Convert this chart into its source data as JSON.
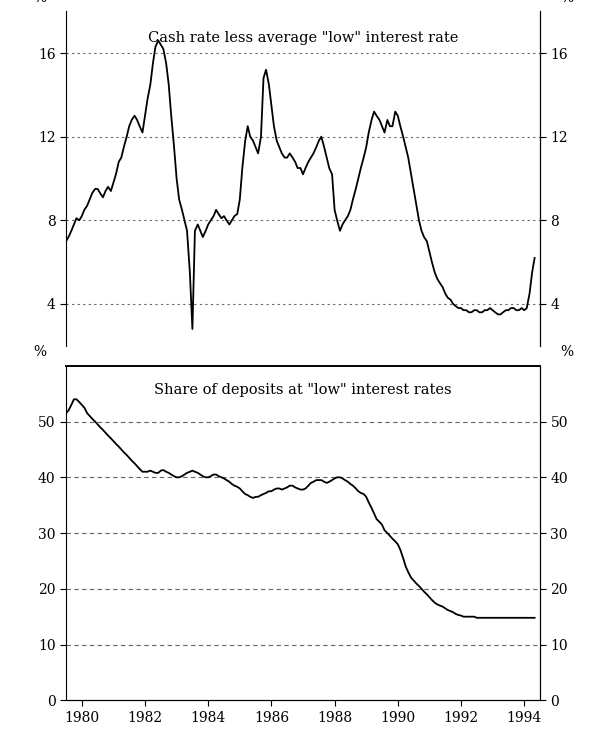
{
  "title1": "Cash rate less average \"low\" interest rate",
  "title2": "Share of deposits at \"low\" interest rates",
  "ylabel": "%",
  "xlabel_ticks": [
    1980,
    1982,
    1984,
    1986,
    1988,
    1990,
    1992,
    1994
  ],
  "panel1_ylim": [
    2,
    18
  ],
  "panel1_yticks": [
    4,
    8,
    12,
    16
  ],
  "panel2_ylim": [
    0,
    60
  ],
  "panel2_yticks": [
    0,
    10,
    20,
    30,
    40,
    50
  ],
  "line_color": "#000000",
  "background_color": "#ffffff",
  "grid_color_dotted": "#666666",
  "panel1_data_x": [
    1979.5,
    1979.58,
    1979.67,
    1979.75,
    1979.83,
    1979.92,
    1980.0,
    1980.08,
    1980.17,
    1980.25,
    1980.33,
    1980.42,
    1980.5,
    1980.58,
    1980.67,
    1980.75,
    1980.83,
    1980.92,
    1981.0,
    1981.08,
    1981.17,
    1981.25,
    1981.33,
    1981.42,
    1981.5,
    1981.58,
    1981.67,
    1981.75,
    1981.83,
    1981.92,
    1982.0,
    1982.08,
    1982.17,
    1982.25,
    1982.33,
    1982.42,
    1982.5,
    1982.58,
    1982.67,
    1982.75,
    1982.83,
    1982.92,
    1983.0,
    1983.08,
    1983.17,
    1983.25,
    1983.33,
    1983.42,
    1983.5,
    1983.58,
    1983.67,
    1983.75,
    1983.83,
    1983.92,
    1984.0,
    1984.08,
    1984.17,
    1984.25,
    1984.33,
    1984.42,
    1984.5,
    1984.58,
    1984.67,
    1984.75,
    1984.83,
    1984.92,
    1985.0,
    1985.08,
    1985.17,
    1985.25,
    1985.33,
    1985.42,
    1985.5,
    1985.58,
    1985.67,
    1985.75,
    1985.83,
    1985.92,
    1986.0,
    1986.08,
    1986.17,
    1986.25,
    1986.33,
    1986.42,
    1986.5,
    1986.58,
    1986.67,
    1986.75,
    1986.83,
    1986.92,
    1987.0,
    1987.08,
    1987.17,
    1987.25,
    1987.33,
    1987.42,
    1987.5,
    1987.58,
    1987.67,
    1987.75,
    1987.83,
    1987.92,
    1988.0,
    1988.08,
    1988.17,
    1988.25,
    1988.33,
    1988.42,
    1988.5,
    1988.58,
    1988.67,
    1988.75,
    1988.83,
    1988.92,
    1989.0,
    1989.08,
    1989.17,
    1989.25,
    1989.33,
    1989.42,
    1989.5,
    1989.58,
    1989.67,
    1989.75,
    1989.83,
    1989.92,
    1990.0,
    1990.08,
    1990.17,
    1990.25,
    1990.33,
    1990.42,
    1990.5,
    1990.58,
    1990.67,
    1990.75,
    1990.83,
    1990.92,
    1991.0,
    1991.08,
    1991.17,
    1991.25,
    1991.33,
    1991.42,
    1991.5,
    1991.58,
    1991.67,
    1991.75,
    1991.83,
    1991.92,
    1992.0,
    1992.08,
    1992.17,
    1992.25,
    1992.33,
    1992.42,
    1992.5,
    1992.58,
    1992.67,
    1992.75,
    1992.83,
    1992.92,
    1993.0,
    1993.08,
    1993.17,
    1993.25,
    1993.33,
    1993.42,
    1993.5,
    1993.58,
    1993.67,
    1993.75,
    1993.83,
    1993.92,
    1994.0,
    1994.08,
    1994.17,
    1994.25,
    1994.33
  ],
  "panel1_data_y": [
    7.0,
    7.2,
    7.5,
    7.8,
    8.1,
    8.0,
    8.2,
    8.5,
    8.7,
    9.0,
    9.3,
    9.5,
    9.5,
    9.3,
    9.1,
    9.4,
    9.6,
    9.4,
    9.8,
    10.2,
    10.8,
    11.0,
    11.5,
    12.0,
    12.5,
    12.8,
    13.0,
    12.8,
    12.5,
    12.2,
    13.0,
    13.8,
    14.5,
    15.5,
    16.3,
    16.6,
    16.4,
    16.2,
    15.5,
    14.5,
    13.0,
    11.5,
    10.0,
    9.0,
    8.5,
    8.0,
    7.5,
    5.5,
    2.8,
    7.5,
    7.8,
    7.5,
    7.2,
    7.5,
    7.8,
    8.0,
    8.2,
    8.5,
    8.3,
    8.1,
    8.2,
    8.0,
    7.8,
    8.0,
    8.2,
    8.3,
    9.0,
    10.5,
    11.8,
    12.5,
    12.0,
    11.8,
    11.5,
    11.2,
    12.0,
    14.8,
    15.2,
    14.5,
    13.5,
    12.5,
    11.8,
    11.5,
    11.2,
    11.0,
    11.0,
    11.2,
    11.0,
    10.8,
    10.5,
    10.5,
    10.2,
    10.5,
    10.8,
    11.0,
    11.2,
    11.5,
    11.8,
    12.0,
    11.5,
    11.0,
    10.5,
    10.2,
    8.5,
    8.0,
    7.5,
    7.8,
    8.0,
    8.2,
    8.5,
    9.0,
    9.5,
    10.0,
    10.5,
    11.0,
    11.5,
    12.2,
    12.8,
    13.2,
    13.0,
    12.8,
    12.5,
    12.2,
    12.8,
    12.5,
    12.5,
    13.2,
    13.0,
    12.5,
    12.0,
    11.5,
    11.0,
    10.2,
    9.5,
    8.8,
    8.0,
    7.5,
    7.2,
    7.0,
    6.5,
    6.0,
    5.5,
    5.2,
    5.0,
    4.8,
    4.5,
    4.3,
    4.2,
    4.0,
    3.9,
    3.8,
    3.8,
    3.7,
    3.7,
    3.6,
    3.6,
    3.7,
    3.7,
    3.6,
    3.6,
    3.7,
    3.7,
    3.8,
    3.7,
    3.6,
    3.5,
    3.5,
    3.6,
    3.7,
    3.7,
    3.8,
    3.8,
    3.7,
    3.7,
    3.8,
    3.7,
    3.8,
    4.5,
    5.5,
    6.2
  ],
  "panel2_data_x": [
    1979.5,
    1979.58,
    1979.67,
    1979.75,
    1979.83,
    1979.92,
    1980.0,
    1980.08,
    1980.17,
    1980.25,
    1980.33,
    1980.42,
    1980.5,
    1980.58,
    1980.67,
    1980.75,
    1980.83,
    1980.92,
    1981.0,
    1981.08,
    1981.17,
    1981.25,
    1981.33,
    1981.42,
    1981.5,
    1981.58,
    1981.67,
    1981.75,
    1981.83,
    1981.92,
    1982.0,
    1982.08,
    1982.17,
    1982.25,
    1982.33,
    1982.42,
    1982.5,
    1982.58,
    1982.67,
    1982.75,
    1982.83,
    1982.92,
    1983.0,
    1983.08,
    1983.17,
    1983.25,
    1983.33,
    1983.42,
    1983.5,
    1983.58,
    1983.67,
    1983.75,
    1983.83,
    1983.92,
    1984.0,
    1984.08,
    1984.17,
    1984.25,
    1984.33,
    1984.42,
    1984.5,
    1984.58,
    1984.67,
    1984.75,
    1984.83,
    1984.92,
    1985.0,
    1985.08,
    1985.17,
    1985.25,
    1985.33,
    1985.42,
    1985.5,
    1985.58,
    1985.67,
    1985.75,
    1985.83,
    1985.92,
    1986.0,
    1986.08,
    1986.17,
    1986.25,
    1986.33,
    1986.42,
    1986.5,
    1986.58,
    1986.67,
    1986.75,
    1986.83,
    1986.92,
    1987.0,
    1987.08,
    1987.17,
    1987.25,
    1987.33,
    1987.42,
    1987.5,
    1987.58,
    1987.67,
    1987.75,
    1987.83,
    1987.92,
    1988.0,
    1988.08,
    1988.17,
    1988.25,
    1988.33,
    1988.42,
    1988.5,
    1988.58,
    1988.67,
    1988.75,
    1988.83,
    1988.92,
    1989.0,
    1989.08,
    1989.17,
    1989.25,
    1989.33,
    1989.42,
    1989.5,
    1989.58,
    1989.67,
    1989.75,
    1989.83,
    1989.92,
    1990.0,
    1990.08,
    1990.17,
    1990.25,
    1990.33,
    1990.42,
    1990.5,
    1990.58,
    1990.67,
    1990.75,
    1990.83,
    1990.92,
    1991.0,
    1991.08,
    1991.17,
    1991.25,
    1991.33,
    1991.42,
    1991.5,
    1991.58,
    1991.67,
    1991.75,
    1991.83,
    1991.92,
    1992.0,
    1992.08,
    1992.17,
    1992.25,
    1992.33,
    1992.42,
    1992.5,
    1992.58,
    1992.67,
    1992.75,
    1992.83,
    1992.92,
    1993.0,
    1993.08,
    1993.17,
    1993.25,
    1993.33,
    1993.42,
    1993.5,
    1993.58,
    1993.67,
    1993.75,
    1993.83,
    1993.92,
    1994.0,
    1994.08,
    1994.17,
    1994.25,
    1994.33
  ],
  "panel2_data_y": [
    51.5,
    52.0,
    53.0,
    54.0,
    54.0,
    53.5,
    53.0,
    52.5,
    51.5,
    51.0,
    50.5,
    50.0,
    49.5,
    49.0,
    48.5,
    48.0,
    47.5,
    47.0,
    46.5,
    46.0,
    45.5,
    45.0,
    44.5,
    44.0,
    43.5,
    43.0,
    42.5,
    42.0,
    41.5,
    41.0,
    41.0,
    41.0,
    41.2,
    41.0,
    40.8,
    40.8,
    41.2,
    41.3,
    41.0,
    40.8,
    40.5,
    40.2,
    40.0,
    40.0,
    40.2,
    40.5,
    40.8,
    41.0,
    41.2,
    41.0,
    40.8,
    40.5,
    40.2,
    40.0,
    40.0,
    40.2,
    40.5,
    40.5,
    40.2,
    40.0,
    39.8,
    39.5,
    39.2,
    38.8,
    38.5,
    38.3,
    38.0,
    37.5,
    37.0,
    36.8,
    36.5,
    36.3,
    36.5,
    36.5,
    36.8,
    37.0,
    37.2,
    37.5,
    37.5,
    37.8,
    38.0,
    38.0,
    37.8,
    38.0,
    38.2,
    38.5,
    38.5,
    38.2,
    38.0,
    37.8,
    37.8,
    38.0,
    38.5,
    39.0,
    39.2,
    39.5,
    39.5,
    39.5,
    39.2,
    39.0,
    39.2,
    39.5,
    39.8,
    40.0,
    40.0,
    39.8,
    39.5,
    39.2,
    38.8,
    38.5,
    38.0,
    37.5,
    37.2,
    37.0,
    36.5,
    35.5,
    34.5,
    33.5,
    32.5,
    32.0,
    31.5,
    30.5,
    30.0,
    29.5,
    29.0,
    28.5,
    28.0,
    27.0,
    25.5,
    24.0,
    23.0,
    22.0,
    21.5,
    21.0,
    20.5,
    20.0,
    19.5,
    19.0,
    18.5,
    18.0,
    17.5,
    17.2,
    17.0,
    16.8,
    16.5,
    16.2,
    16.0,
    15.8,
    15.5,
    15.3,
    15.2,
    15.0,
    15.0,
    15.0,
    15.0,
    15.0,
    14.8,
    14.8,
    14.8,
    14.8,
    14.8,
    14.8,
    14.8,
    14.8,
    14.8,
    14.8,
    14.8,
    14.8,
    14.8,
    14.8,
    14.8,
    14.8,
    14.8,
    14.8,
    14.8,
    14.8,
    14.8,
    14.8,
    14.8
  ]
}
